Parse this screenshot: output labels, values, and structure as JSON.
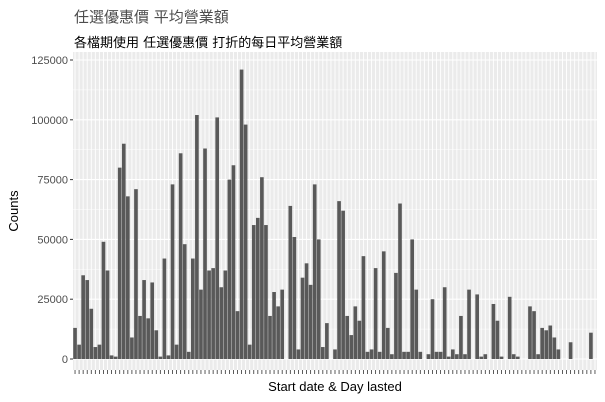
{
  "chart_data": {
    "type": "bar",
    "title": "任選優惠價 平均營業額",
    "subtitle": "各檔期使用 任選優惠價 打折的每日平均營業額",
    "xlabel": "Start date & Day lasted",
    "ylabel": "Counts",
    "ylim": [
      0,
      125000
    ],
    "yticks": [
      0,
      25000,
      50000,
      75000,
      100000,
      125000
    ],
    "ytick_labels": [
      "0",
      "25000",
      "50000",
      "75000",
      "100000",
      "125000"
    ],
    "grid": true,
    "bar_color": "#595959",
    "panel_color": "#ebebeb",
    "values": [
      13000,
      6000,
      35000,
      33000,
      21000,
      5000,
      6000,
      49000,
      37000,
      1500,
      1000,
      80000,
      90000,
      68000,
      9000,
      71000,
      18000,
      33000,
      17000,
      32000,
      12000,
      1000,
      42000,
      1500,
      73000,
      6000,
      86000,
      48000,
      3000,
      42000,
      102000,
      29000,
      88000,
      37000,
      38000,
      101000,
      30000,
      37000,
      75000,
      81000,
      20000,
      121000,
      98000,
      6000,
      56000,
      59000,
      76000,
      56000,
      18000,
      28000,
      22000,
      29000,
      0,
      64000,
      51000,
      4000,
      34000,
      40000,
      31000,
      73000,
      50000,
      5000,
      15000,
      0,
      4000,
      66000,
      62000,
      18000,
      10000,
      22000,
      16000,
      43000,
      3000,
      4000,
      38000,
      3000,
      45000,
      13000,
      2000,
      36000,
      65000,
      3000,
      3000,
      50000,
      29000,
      3000,
      0,
      2000,
      25000,
      3000,
      3000,
      30000,
      1000,
      4000,
      2000,
      18000,
      2000,
      29000,
      0,
      27000,
      1000,
      2000,
      0,
      23000,
      16000,
      1000,
      0,
      26000,
      2000,
      1000,
      0,
      0,
      22000,
      20000,
      2000,
      13000,
      12000,
      14000,
      9000,
      4000,
      0,
      0,
      7000,
      0,
      0,
      0,
      0,
      11000,
      0
    ]
  }
}
